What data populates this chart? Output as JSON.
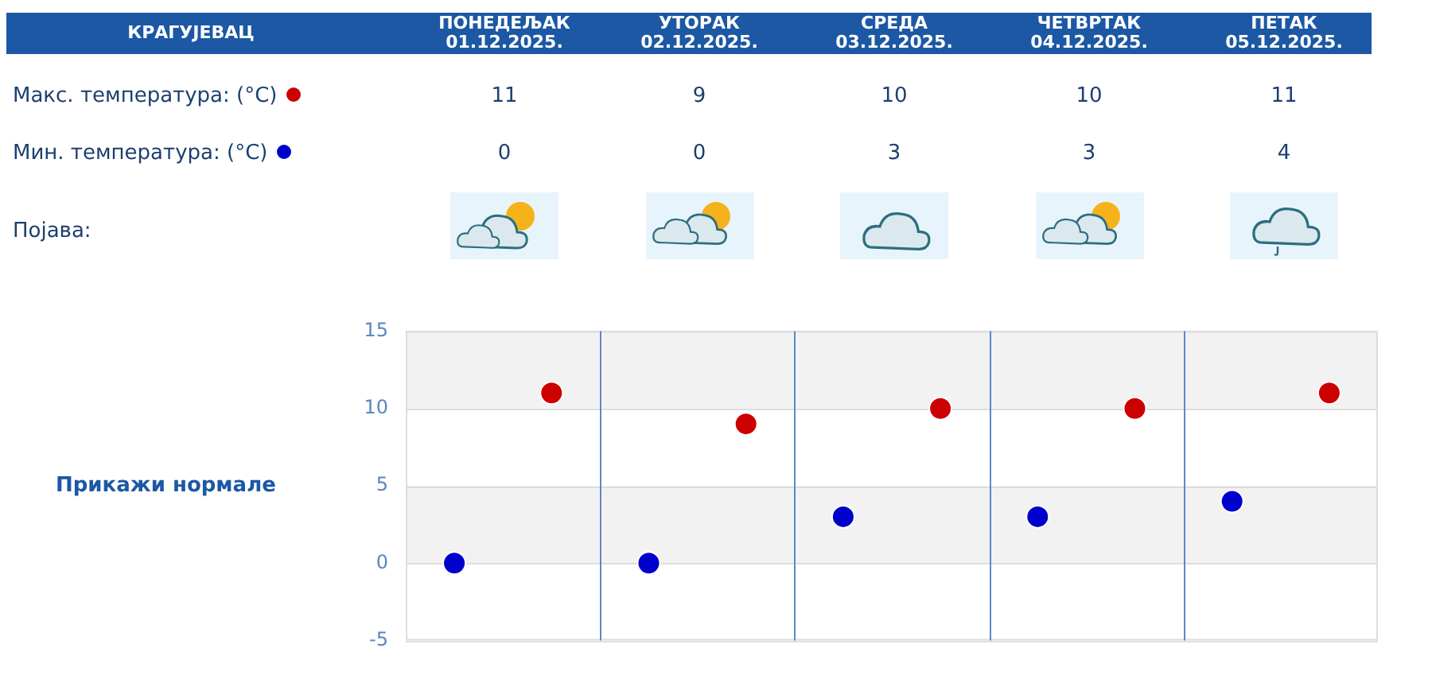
{
  "chart_data": {
    "type": "scatter",
    "title": "КРАГУЈЕВАЦ",
    "categories": [
      null,
      null,
      null,
      null,
      null
    ],
    "legend": "top left",
    "series": [
      {
        "name": "Макс. температура: (°C)",
        "color": "#cc0000",
        "values": [
          11,
          9,
          10,
          10,
          11
        ]
      },
      {
        "name": "Мин. температура: (°C)",
        "color": "#0000cc",
        "values": [
          0,
          0,
          3,
          3,
          4
        ]
      }
    ],
    "ylim": [
      -5,
      15
    ],
    "yticks": [
      -5,
      0,
      5,
      10,
      15
    ],
    "grid": true,
    "marker": "circle",
    "data_labels": true,
    "bands": [
      {
        "axis": "y",
        "from": 10,
        "to": 15,
        "color": "#f2f2f2"
      },
      {
        "axis": "y",
        "from": 0,
        "to": 5,
        "color": "#f2f2f2"
      }
    ],
    "annotations": [
      "Појава:",
      "Прикажи нормале",
      "ПОНЕДЕЉАК 01.12.2025.",
      "УТОРАК 02.12.2025.",
      "СРЕДА 03.12.2025.",
      "ЧЕТВРТАК 04.12.2025.",
      "ПЕТАК 05.12.2025."
    ]
  }
}
